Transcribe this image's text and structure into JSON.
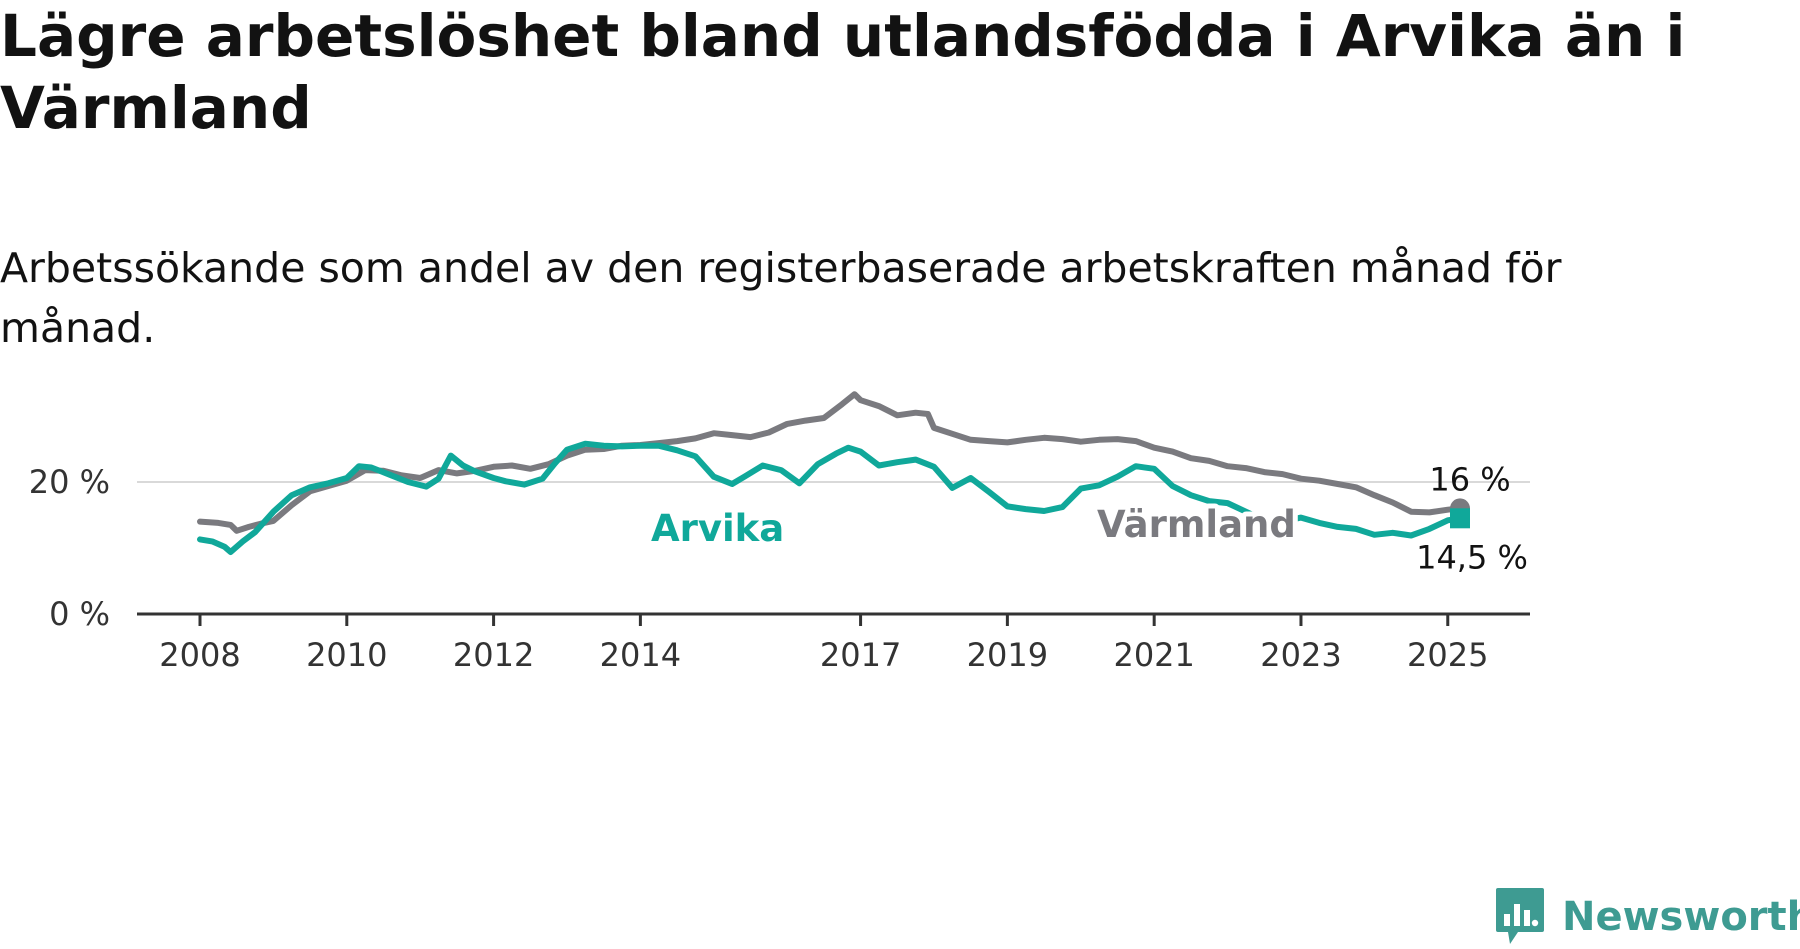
{
  "title": "Lägre arbetslöshet bland utlandsfödda i Arvika än i Värmland",
  "subtitle": "Arbetssökande som andel av den registerbaserade arbetskraften månad för månad.",
  "brand": {
    "name": "Newsworthy",
    "color": "#3e9b92"
  },
  "colors": {
    "arvika": "#10a89a",
    "varmland": "#7a7a7f",
    "grid": "#d9d9d9",
    "axis": "#333333"
  },
  "chart_data": {
    "type": "line",
    "title": "Lägre arbetslöshet bland utlandsfödda i Arvika än i Värmland",
    "subtitle": "Arbetssökande som andel av den registerbaserade arbetskraften månad för månad.",
    "xlabel": "",
    "ylabel": "",
    "x_range": [
      "2008-01",
      "2025-03"
    ],
    "ylim": [
      0,
      34
    ],
    "y_ticks": [
      {
        "value": 0,
        "label": "0 %"
      },
      {
        "value": 20,
        "label": "20 %"
      }
    ],
    "x_ticks": [
      {
        "date": "2008-01",
        "label": "2008"
      },
      {
        "date": "2010-01",
        "label": "2010"
      },
      {
        "date": "2012-01",
        "label": "2012"
      },
      {
        "date": "2014-01",
        "label": "2014"
      },
      {
        "date": "2017-01",
        "label": "2017"
      },
      {
        "date": "2019-01",
        "label": "2019"
      },
      {
        "date": "2021-01",
        "label": "2021"
      },
      {
        "date": "2023-01",
        "label": "2023"
      },
      {
        "date": "2025-01",
        "label": "2025"
      }
    ],
    "grid": "horizontal",
    "legend": "direct labels on lines",
    "series": [
      {
        "name": "Värmland",
        "color": "#7a7a7f",
        "end_label": "16 %",
        "points": [
          [
            "2008-01",
            14.0
          ],
          [
            "2008-04",
            13.8
          ],
          [
            "2008-06",
            13.5
          ],
          [
            "2008-07",
            12.6
          ],
          [
            "2008-09",
            13.2
          ],
          [
            "2008-11",
            13.7
          ],
          [
            "2009-01",
            14.1
          ],
          [
            "2009-04",
            16.5
          ],
          [
            "2009-07",
            18.6
          ],
          [
            "2009-10",
            19.4
          ],
          [
            "2010-01",
            20.2
          ],
          [
            "2010-04",
            21.8
          ],
          [
            "2010-07",
            21.7
          ],
          [
            "2010-10",
            21.0
          ],
          [
            "2011-01",
            20.6
          ],
          [
            "2011-04",
            21.8
          ],
          [
            "2011-07",
            21.3
          ],
          [
            "2011-10",
            21.7
          ],
          [
            "2012-01",
            22.3
          ],
          [
            "2012-04",
            22.5
          ],
          [
            "2012-07",
            22.0
          ],
          [
            "2012-10",
            22.7
          ],
          [
            "2013-01",
            24.0
          ],
          [
            "2013-04",
            24.9
          ],
          [
            "2013-07",
            25.0
          ],
          [
            "2013-10",
            25.5
          ],
          [
            "2014-01",
            25.6
          ],
          [
            "2014-04",
            25.9
          ],
          [
            "2014-07",
            26.2
          ],
          [
            "2014-10",
            26.6
          ],
          [
            "2015-01",
            27.4
          ],
          [
            "2015-04",
            27.1
          ],
          [
            "2015-07",
            26.8
          ],
          [
            "2015-10",
            27.5
          ],
          [
            "2016-01",
            28.8
          ],
          [
            "2016-04",
            29.3
          ],
          [
            "2016-07",
            29.7
          ],
          [
            "2016-10",
            31.8
          ],
          [
            "2016-12",
            33.3
          ],
          [
            "2017-01",
            32.4
          ],
          [
            "2017-04",
            31.5
          ],
          [
            "2017-07",
            30.1
          ],
          [
            "2017-10",
            30.5
          ],
          [
            "2017-12",
            30.3
          ],
          [
            "2018-01",
            28.2
          ],
          [
            "2018-04",
            27.3
          ],
          [
            "2018-07",
            26.4
          ],
          [
            "2018-10",
            26.2
          ],
          [
            "2019-01",
            26.0
          ],
          [
            "2019-04",
            26.4
          ],
          [
            "2019-07",
            26.7
          ],
          [
            "2019-10",
            26.5
          ],
          [
            "2020-01",
            26.1
          ],
          [
            "2020-04",
            26.4
          ],
          [
            "2020-07",
            26.5
          ],
          [
            "2020-10",
            26.2
          ],
          [
            "2021-01",
            25.2
          ],
          [
            "2021-04",
            24.6
          ],
          [
            "2021-07",
            23.6
          ],
          [
            "2021-10",
            23.2
          ],
          [
            "2022-01",
            22.4
          ],
          [
            "2022-04",
            22.1
          ],
          [
            "2022-07",
            21.5
          ],
          [
            "2022-10",
            21.2
          ],
          [
            "2023-01",
            20.5
          ],
          [
            "2023-04",
            20.2
          ],
          [
            "2023-07",
            19.7
          ],
          [
            "2023-10",
            19.2
          ],
          [
            "2024-01",
            18.0
          ],
          [
            "2024-04",
            16.9
          ],
          [
            "2024-07",
            15.5
          ],
          [
            "2024-10",
            15.4
          ],
          [
            "2025-01",
            15.8
          ],
          [
            "2025-03",
            16.0
          ]
        ]
      },
      {
        "name": "Arvika",
        "color": "#10a89a",
        "end_label": "14,5 %",
        "points": [
          [
            "2008-01",
            11.3
          ],
          [
            "2008-03",
            11.0
          ],
          [
            "2008-05",
            10.2
          ],
          [
            "2008-06",
            9.4
          ],
          [
            "2008-08",
            11.0
          ],
          [
            "2008-10",
            12.4
          ],
          [
            "2009-01",
            15.5
          ],
          [
            "2009-04",
            18.0
          ],
          [
            "2009-07",
            19.2
          ],
          [
            "2009-10",
            19.8
          ],
          [
            "2010-01",
            20.6
          ],
          [
            "2010-03",
            22.4
          ],
          [
            "2010-05",
            22.2
          ],
          [
            "2010-08",
            21.1
          ],
          [
            "2010-11",
            20.0
          ],
          [
            "2011-02",
            19.3
          ],
          [
            "2011-04",
            20.5
          ],
          [
            "2011-06",
            24.0
          ],
          [
            "2011-08",
            22.5
          ],
          [
            "2011-10",
            21.6
          ],
          [
            "2012-01",
            20.6
          ],
          [
            "2012-03",
            20.1
          ],
          [
            "2012-06",
            19.6
          ],
          [
            "2012-09",
            20.5
          ],
          [
            "2012-11",
            22.8
          ],
          [
            "2013-01",
            24.9
          ],
          [
            "2013-04",
            25.8
          ],
          [
            "2013-07",
            25.5
          ],
          [
            "2013-10",
            25.4
          ],
          [
            "2014-01",
            25.5
          ],
          [
            "2014-04",
            25.5
          ],
          [
            "2014-07",
            24.8
          ],
          [
            "2014-10",
            23.9
          ],
          [
            "2015-01",
            20.8
          ],
          [
            "2015-04",
            19.7
          ],
          [
            "2015-06",
            20.8
          ],
          [
            "2015-09",
            22.5
          ],
          [
            "2015-12",
            21.8
          ],
          [
            "2016-03",
            19.8
          ],
          [
            "2016-06",
            22.7
          ],
          [
            "2016-09",
            24.3
          ],
          [
            "2016-11",
            25.2
          ],
          [
            "2017-01",
            24.6
          ],
          [
            "2017-04",
            22.5
          ],
          [
            "2017-07",
            23.0
          ],
          [
            "2017-10",
            23.4
          ],
          [
            "2018-01",
            22.3
          ],
          [
            "2018-04",
            19.1
          ],
          [
            "2018-07",
            20.6
          ],
          [
            "2018-10",
            18.5
          ],
          [
            "2019-01",
            16.3
          ],
          [
            "2019-04",
            15.9
          ],
          [
            "2019-07",
            15.6
          ],
          [
            "2019-10",
            16.2
          ],
          [
            "2020-01",
            19.0
          ],
          [
            "2020-04",
            19.5
          ],
          [
            "2020-07",
            20.8
          ],
          [
            "2020-10",
            22.4
          ],
          [
            "2021-01",
            22.0
          ],
          [
            "2021-04",
            19.4
          ],
          [
            "2021-07",
            18.0
          ],
          [
            "2021-10",
            17.1
          ],
          [
            "2022-01",
            16.8
          ],
          [
            "2022-04",
            15.5
          ],
          [
            "2022-07",
            14.2
          ],
          [
            "2022-10",
            14.0
          ],
          [
            "2023-01",
            14.6
          ],
          [
            "2023-04",
            13.8
          ],
          [
            "2023-07",
            13.2
          ],
          [
            "2023-10",
            12.9
          ],
          [
            "2024-01",
            12.0
          ],
          [
            "2024-04",
            12.3
          ],
          [
            "2024-07",
            11.9
          ],
          [
            "2024-10",
            12.9
          ],
          [
            "2025-01",
            14.2
          ],
          [
            "2025-03",
            14.5
          ]
        ]
      }
    ]
  }
}
